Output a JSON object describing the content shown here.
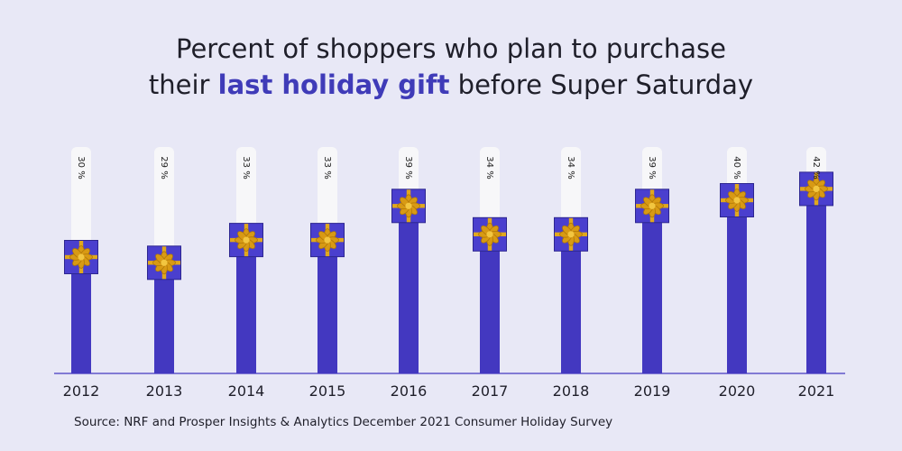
{
  "title": {
    "line1": "Percent of shoppers who plan to purchase",
    "line2_pre": "their ",
    "line2_highlight": "last holiday gift",
    "line2_post": " before Super Saturday"
  },
  "source": "Source: NRF and Prosper Insights & Analytics December 2021 Consumer Holiday Survey",
  "colors": {
    "background": "#e8e8f6",
    "bar": "#4338c0",
    "gift": "#4a3fce",
    "ribbon": "#e0a81e",
    "track": "#f7f7f9",
    "highlight": "#3f3bb8"
  },
  "chart_data": {
    "type": "bar",
    "title": "Percent of shoppers who plan to purchase their last holiday gift before Super Saturday",
    "categories": [
      "2012",
      "2013",
      "2014",
      "2015",
      "2016",
      "2017",
      "2018",
      "2019",
      "2020",
      "2021"
    ],
    "values": [
      30,
      29,
      33,
      33,
      39,
      34,
      34,
      39,
      40,
      42
    ],
    "value_labels": [
      "30 %",
      "29 %",
      "33 %",
      "33 %",
      "39 %",
      "34 %",
      "34 %",
      "39 %",
      "40 %",
      "42 %"
    ],
    "xlabel": "",
    "ylabel": "",
    "grid": false,
    "legend": "none"
  }
}
